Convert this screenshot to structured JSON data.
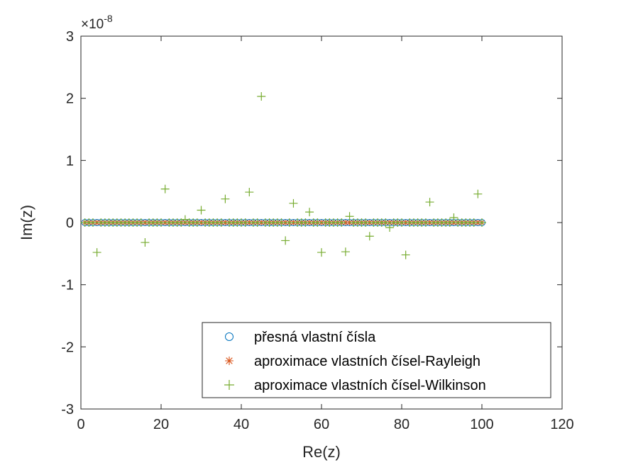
{
  "chart_data": {
    "type": "scatter",
    "xlabel": "Re(z)",
    "ylabel": "Im(z)",
    "xlim": [
      0,
      120
    ],
    "ylim": [
      -3,
      3
    ],
    "y_exponent_label": "×10",
    "y_exponent_power": "-8",
    "y_exponent": -8,
    "x_ticks": [
      "0",
      "20",
      "40",
      "60",
      "80",
      "100",
      "120"
    ],
    "y_ticks": [
      "-3",
      "-2",
      "-1",
      "0",
      "1",
      "2",
      "3"
    ],
    "grid": false,
    "legend_position": "bottom-right",
    "series": [
      {
        "name": "přesná vlastní čísla",
        "marker": "circle",
        "color": "#0072BD",
        "x_range": [
          1,
          100
        ],
        "y_constant": 0
      },
      {
        "name": "aproximace vlastních čísel-Rayleigh",
        "marker": "asterisk",
        "color": "#D95319",
        "x_range": [
          1,
          100
        ],
        "y_constant": 0
      },
      {
        "name": "aproximace vlastních čísel-Wilkinson",
        "marker": "plus",
        "color": "#77AC30",
        "x_range": [
          1,
          100
        ],
        "y_default": 0,
        "outliers": [
          {
            "x": 4,
            "y": -0.48
          },
          {
            "x": 16,
            "y": -0.32
          },
          {
            "x": 21,
            "y": 0.54
          },
          {
            "x": 26,
            "y": 0.05
          },
          {
            "x": 30,
            "y": 0.2
          },
          {
            "x": 36,
            "y": 0.38
          },
          {
            "x": 42,
            "y": 0.49
          },
          {
            "x": 45,
            "y": 2.03
          },
          {
            "x": 51,
            "y": -0.29
          },
          {
            "x": 53,
            "y": 0.31
          },
          {
            "x": 57,
            "y": 0.17
          },
          {
            "x": 60,
            "y": -0.48
          },
          {
            "x": 66,
            "y": -0.47
          },
          {
            "x": 67,
            "y": 0.1
          },
          {
            "x": 72,
            "y": -0.22
          },
          {
            "x": 77,
            "y": -0.08
          },
          {
            "x": 81,
            "y": -0.52
          },
          {
            "x": 87,
            "y": 0.33
          },
          {
            "x": 93,
            "y": 0.08
          },
          {
            "x": 99,
            "y": 0.46
          }
        ]
      }
    ]
  }
}
